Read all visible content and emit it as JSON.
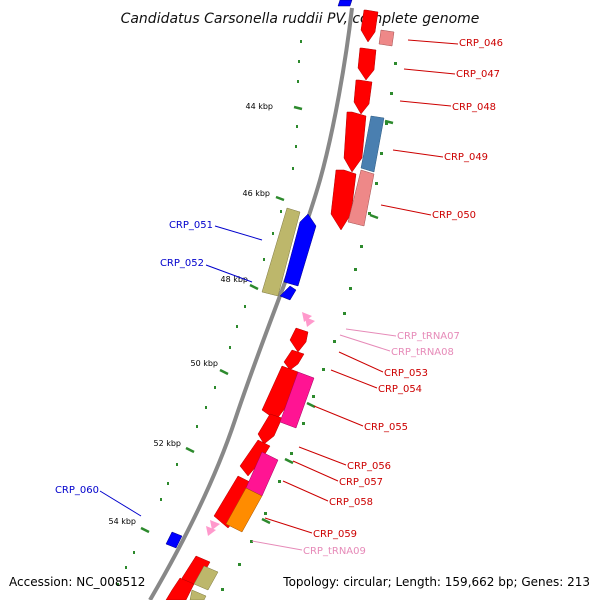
{
  "title": "Candidatus Carsonella ruddii PV, complete genome",
  "accession": "Accession: NC_008512",
  "topology": "Topology: circular; Length: 159,662 bp; Genes: 213",
  "colors": {
    "backbone": "#888888",
    "tick": "#2d8a2d",
    "red": "#ff0000",
    "pink": "#ee8888",
    "steel": "#4a7fb0",
    "olive": "#bdb76b",
    "blue": "#0000ff",
    "magenta": "#ff1493",
    "orange": "#ff8c00",
    "trna": "#ff99cc",
    "label_red": "#cc0000",
    "label_blue": "#0000cc",
    "label_trna": "#e68ab8"
  },
  "kbp_labels": [
    "44 kbp",
    "46 kbp",
    "48 kbp",
    "50 kbp",
    "52 kbp",
    "54 kbp"
  ],
  "gene_labels": [
    {
      "text": "CRP_046",
      "tone": "label_red"
    },
    {
      "text": "CRP_047",
      "tone": "label_red"
    },
    {
      "text": "CRP_048",
      "tone": "label_red"
    },
    {
      "text": "CRP_049",
      "tone": "label_red"
    },
    {
      "text": "CRP_050",
      "tone": "label_red"
    },
    {
      "text": "CRP_051",
      "tone": "label_blue"
    },
    {
      "text": "CRP_052",
      "tone": "label_blue"
    },
    {
      "text": "CRP_tRNA07",
      "tone": "label_trna"
    },
    {
      "text": "CRP_tRNA08",
      "tone": "label_trna"
    },
    {
      "text": "CRP_053",
      "tone": "label_red"
    },
    {
      "text": "CRP_054",
      "tone": "label_red"
    },
    {
      "text": "CRP_055",
      "tone": "label_red"
    },
    {
      "text": "CRP_056",
      "tone": "label_red"
    },
    {
      "text": "CRP_057",
      "tone": "label_red"
    },
    {
      "text": "CRP_058",
      "tone": "label_red"
    },
    {
      "text": "CRP_059",
      "tone": "label_red"
    },
    {
      "text": "CRP_tRNA09",
      "tone": "label_trna"
    },
    {
      "text": "CRP_060",
      "tone": "label_blue"
    }
  ]
}
